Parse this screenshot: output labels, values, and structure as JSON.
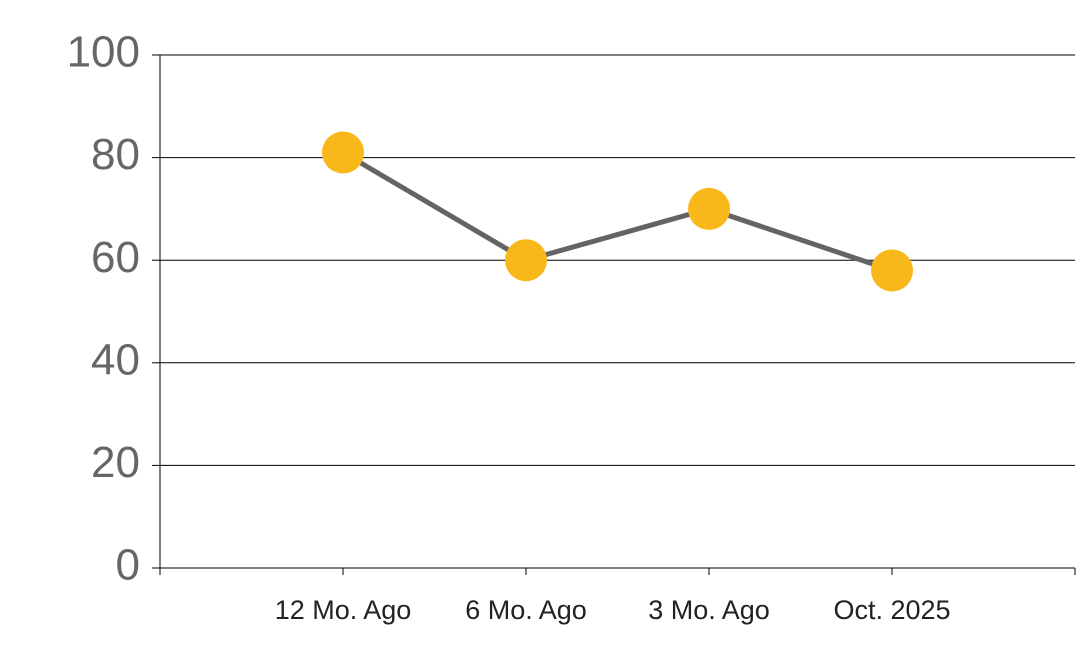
{
  "chart_data": {
    "type": "line",
    "categories": [
      "12 Mo. Ago",
      "6 Mo. Ago",
      "3 Mo. Ago",
      "Oct. 2025"
    ],
    "values": [
      81,
      60,
      70,
      58
    ],
    "line_color": "#646464",
    "marker_color": "#F9B81A",
    "ylim": [
      0,
      100
    ],
    "yticks": [
      0,
      20,
      40,
      60,
      80,
      100
    ],
    "grid": true
  }
}
